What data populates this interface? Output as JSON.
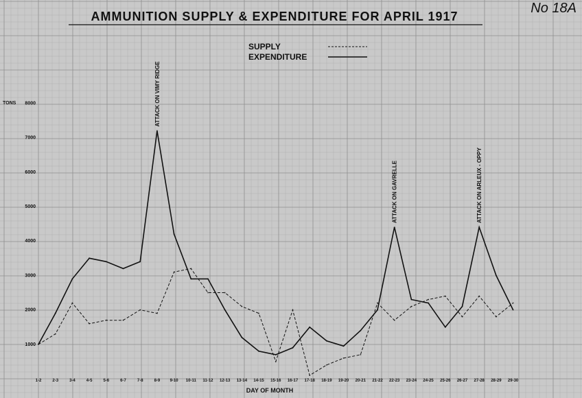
{
  "plate_number": "No 18A",
  "chart_data": {
    "type": "line",
    "title": "AMMUNITION SUPPLY & EXPENDITURE FOR APRIL 1917",
    "xlabel": "DAY OF MONTH",
    "ylabel": "TONS",
    "ylim": [
      0,
      8000
    ],
    "grid": true,
    "legend_position": "top-center",
    "categories": [
      "1-2",
      "2-3",
      "3-4",
      "4-5",
      "5-6",
      "6-7",
      "7-8",
      "8-9",
      "9-10",
      "10-11",
      "11-12",
      "12-13",
      "13-14",
      "14-15",
      "15-16",
      "16-17",
      "17-18",
      "18-19",
      "19-20",
      "20-21",
      "21-22",
      "22-23",
      "23-24",
      "24-25",
      "25-26",
      "26-27",
      "27-28",
      "28-29",
      "29-30"
    ],
    "yticks": [
      "1000",
      "2000",
      "3000",
      "4000",
      "5000",
      "6000",
      "7000",
      "8000"
    ],
    "series": [
      {
        "name": "SUPPLY",
        "style": "dashed",
        "values": [
          1000,
          1300,
          2200,
          1600,
          1700,
          1700,
          2000,
          1900,
          3100,
          3200,
          2500,
          2500,
          2100,
          1900,
          500,
          2000,
          100,
          400,
          600,
          700,
          2200,
          1700,
          2100,
          2300,
          2400,
          1800,
          2400,
          1800,
          2200
        ]
      },
      {
        "name": "EXPENDITURE",
        "style": "solid",
        "values": [
          1000,
          1900,
          2900,
          3500,
          3400,
          3200,
          3400,
          7200,
          4200,
          2900,
          2900,
          2000,
          1200,
          800,
          700,
          900,
          1500,
          1100,
          950,
          1400,
          2000,
          4400,
          2300,
          2200,
          1500,
          2100,
          4400,
          3000,
          2000
        ]
      }
    ],
    "annotations": [
      {
        "text": "ATTACK ON VIMY RIDGE",
        "category": "8-9"
      },
      {
        "text": "ATTACK ON GAVRELLE",
        "category": "22-23"
      },
      {
        "text": "ATTACK ON ARLEUX - OPPY",
        "category": "27-28"
      }
    ]
  }
}
